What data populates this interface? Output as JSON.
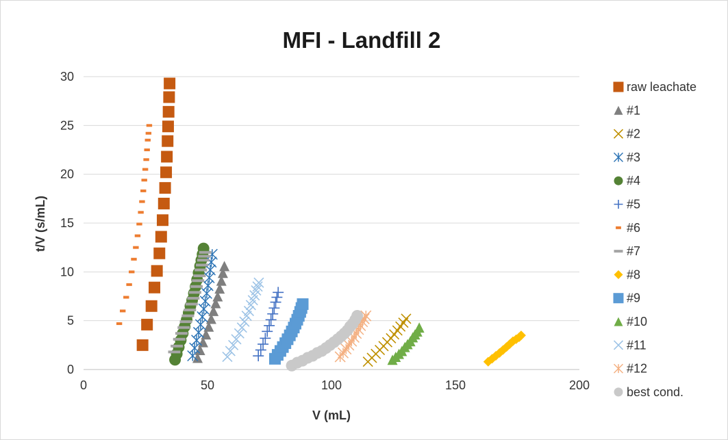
{
  "chart_data": {
    "type": "scatter",
    "title": "MFI - Landfill 2",
    "xlabel": "V (mL)",
    "ylabel": "t/V (s/mL)",
    "xlim": [
      0,
      200
    ],
    "ylim": [
      0,
      30
    ],
    "xticks": [
      "0",
      "50",
      "100",
      "150",
      "200"
    ],
    "yticks": [
      "0",
      "5",
      "10",
      "15",
      "20",
      "25",
      "30"
    ],
    "grid": "horizontal",
    "legend_position": "right",
    "series": [
      {
        "name": "raw leachate",
        "marker": "square",
        "color": "#C55A11",
        "x": [
          23.8,
          25.6,
          27.4,
          28.6,
          29.6,
          30.6,
          31.3,
          31.9,
          32.4,
          32.9,
          33.3,
          33.6,
          33.9,
          34.1,
          34.3
        ],
        "y": [
          2.5,
          4.6,
          6.5,
          8.4,
          10.1,
          11.9,
          13.6,
          15.3,
          17.0,
          18.6,
          20.2,
          21.8,
          23.4,
          24.9,
          26.4
        ],
        "extra": {
          "x": [
            34.5,
            34.7
          ],
          "y": [
            27.9,
            29.3
          ]
        }
      },
      {
        "name": "#1",
        "marker": "triangle",
        "color": "#7F7F7F",
        "x": [
          46,
          47,
          48.2,
          49.4,
          50.5,
          51.5,
          52.4,
          53.3,
          54.1,
          54.9,
          55.6,
          56.2,
          56.8
        ],
        "y": [
          1.2,
          2.0,
          2.8,
          3.6,
          4.4,
          5.2,
          6.0,
          6.8,
          7.5,
          8.3,
          9.1,
          9.9,
          10.6
        ]
      },
      {
        "name": "#2",
        "marker": "x",
        "color": "#BF9000",
        "x": [
          114.7,
          116.3,
          117.9,
          119.5,
          121.0,
          122.5,
          124.0,
          125.3,
          126.6,
          127.8,
          129.0,
          130.1
        ],
        "y": [
          0.8,
          1.2,
          1.6,
          2.0,
          2.4,
          2.8,
          3.2,
          3.6,
          4.0,
          4.4,
          4.8,
          5.2
        ]
      },
      {
        "name": "#3",
        "marker": "asterisk",
        "color": "#2E75B6",
        "x": [
          44,
          44.8,
          45.6,
          46.4,
          47.2,
          47.9,
          48.5,
          49.1,
          49.7,
          50.2,
          50.7,
          51.1,
          51.5,
          51.9
        ],
        "y": [
          1.4,
          2.2,
          3.0,
          3.8,
          4.6,
          5.4,
          6.2,
          7.0,
          7.8,
          8.6,
          9.4,
          10.2,
          11.0,
          11.8
        ]
      },
      {
        "name": "#4",
        "marker": "circle",
        "color": "#548235",
        "x": [
          36.9,
          37.6,
          38.4,
          39.2,
          40.0,
          40.8,
          41.6,
          42.4,
          43.1,
          43.8,
          44.5,
          45.2,
          45.8,
          46.4,
          47.0,
          47.5,
          48.0,
          48.4
        ],
        "y": [
          1.0,
          1.6,
          2.3,
          3.0,
          3.7,
          4.4,
          5.1,
          5.8,
          6.5,
          7.1,
          7.8,
          8.5,
          9.2,
          9.9,
          10.6,
          11.2,
          11.8,
          12.4
        ]
      },
      {
        "name": "#5",
        "marker": "plus",
        "color": "#4472C4",
        "x": [
          70.5,
          71.5,
          72.4,
          73.3,
          74.1,
          74.9,
          75.6,
          76.3,
          76.9,
          77.5,
          78.0,
          78.5
        ],
        "y": [
          1.4,
          2.0,
          2.6,
          3.2,
          3.9,
          4.5,
          5.1,
          5.7,
          6.3,
          6.9,
          7.4,
          7.9
        ]
      },
      {
        "name": "#6",
        "marker": "dash",
        "color": "#ED7D31",
        "x": [
          14.4,
          15.8,
          17.2,
          18.4,
          19.4,
          20.3,
          21.1,
          21.8,
          22.5,
          23.1,
          23.6,
          24.1,
          24.5,
          24.9,
          25.3,
          25.6,
          25.9,
          26.2,
          26.5
        ],
        "y": [
          4.7,
          6.0,
          7.4,
          8.7,
          10.0,
          11.3,
          12.5,
          13.7,
          14.9,
          16.1,
          17.2,
          18.3,
          19.4,
          20.5,
          21.5,
          22.5,
          23.5,
          24.2,
          25.0
        ]
      },
      {
        "name": "#7",
        "marker": "dash-wide",
        "color": "#A5A5A5",
        "x": [
          36.6,
          37.6,
          38.6,
          39.5,
          40.4,
          41.3,
          42.1,
          42.9,
          43.6,
          44.3,
          45.0,
          45.6,
          46.2,
          46.8,
          47.3,
          47.8,
          48.3,
          48.7,
          49.1
        ],
        "y": [
          1.8,
          2.4,
          3.1,
          3.7,
          4.3,
          4.9,
          5.5,
          6.1,
          6.7,
          7.3,
          7.9,
          8.5,
          9.1,
          9.6,
          10.2,
          10.7,
          11.2,
          11.6,
          12.0
        ]
      },
      {
        "name": "#8",
        "marker": "diamond",
        "color": "#FFC000",
        "x": [
          163.2,
          164.8,
          166.3,
          167.8,
          169.2,
          170.6,
          171.9,
          173.2,
          174.5,
          175.7,
          176.5
        ],
        "y": [
          0.8,
          1.1,
          1.4,
          1.7,
          2.0,
          2.3,
          2.6,
          2.9,
          3.1,
          3.3,
          3.5
        ]
      },
      {
        "name": "#9",
        "marker": "square",
        "color": "#5B9BD5",
        "x": [
          77.2,
          78.3,
          79.4,
          80.4,
          81.4,
          82.3,
          83.2,
          84.0,
          84.8,
          85.5,
          86.2,
          86.8,
          87.4,
          87.9,
          88.4
        ],
        "y": [
          1.1,
          1.5,
          1.9,
          2.3,
          2.7,
          3.1,
          3.5,
          3.9,
          4.3,
          4.7,
          5.1,
          5.5,
          5.9,
          6.3,
          6.7
        ]
      },
      {
        "name": "#10",
        "marker": "triangle",
        "color": "#70AD47",
        "x": [
          124.6,
          125.9,
          127.2,
          128.4,
          129.6,
          130.7,
          131.8,
          132.8,
          133.7,
          134.6,
          135.4
        ],
        "y": [
          1.0,
          1.3,
          1.6,
          1.9,
          2.3,
          2.6,
          2.9,
          3.3,
          3.6,
          3.9,
          4.3
        ]
      },
      {
        "name": "#11",
        "marker": "x",
        "color": "#9DC3E6",
        "x": [
          58.0,
          59.2,
          60.4,
          61.6,
          62.8,
          63.9,
          64.9,
          65.8,
          66.7,
          67.5,
          68.3,
          69.0,
          69.6,
          70.2,
          70.7
        ],
        "y": [
          1.3,
          1.9,
          2.5,
          3.1,
          3.7,
          4.3,
          4.9,
          5.5,
          6.0,
          6.6,
          7.1,
          7.6,
          8.1,
          8.5,
          8.9
        ]
      },
      {
        "name": "#12",
        "marker": "asterisk",
        "color": "#F4B183",
        "x": [
          103.5,
          104.7,
          105.9,
          107.0,
          108.1,
          109.1,
          110.0,
          110.9,
          111.7,
          112.5,
          113.2,
          113.9
        ],
        "y": [
          1.3,
          1.7,
          2.1,
          2.5,
          2.9,
          3.3,
          3.7,
          4.1,
          4.5,
          4.9,
          5.2,
          5.5
        ]
      },
      {
        "name": "best cond.",
        "marker": "circle",
        "color": "#C9C9C9",
        "x": [
          84.0,
          86.2,
          88.3,
          90.4,
          92.4,
          94.3,
          96.1,
          97.8,
          99.4,
          101.0,
          102.5,
          103.9,
          105.2,
          106.4,
          107.5,
          108.6,
          109.6,
          110.4
        ],
        "y": [
          0.4,
          0.7,
          0.9,
          1.2,
          1.4,
          1.7,
          1.9,
          2.2,
          2.5,
          2.8,
          3.1,
          3.4,
          3.7,
          4.0,
          4.4,
          4.7,
          5.1,
          5.5
        ]
      }
    ]
  }
}
